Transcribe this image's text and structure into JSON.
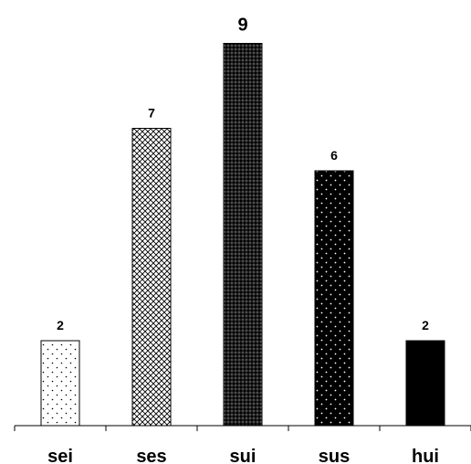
{
  "chart_data": {
    "type": "bar",
    "categories": [
      "sei",
      "ses",
      "sui",
      "sus",
      "hui"
    ],
    "values": [
      2,
      7,
      9,
      6,
      2
    ],
    "data_labels": [
      "2",
      "7",
      "9",
      "6",
      "2"
    ],
    "ylim": [
      0,
      9.5
    ],
    "grid": false,
    "legend": "none",
    "bar_styles": [
      {
        "fill": "sparse-dots",
        "color": "#000000"
      },
      {
        "fill": "light-crosshatch",
        "color": "#000000"
      },
      {
        "fill": "dense-crosshatch",
        "color": "#000000"
      },
      {
        "fill": "white-dots-on-black",
        "color": "#000000"
      },
      {
        "fill": "solid",
        "color": "#000000"
      }
    ]
  }
}
